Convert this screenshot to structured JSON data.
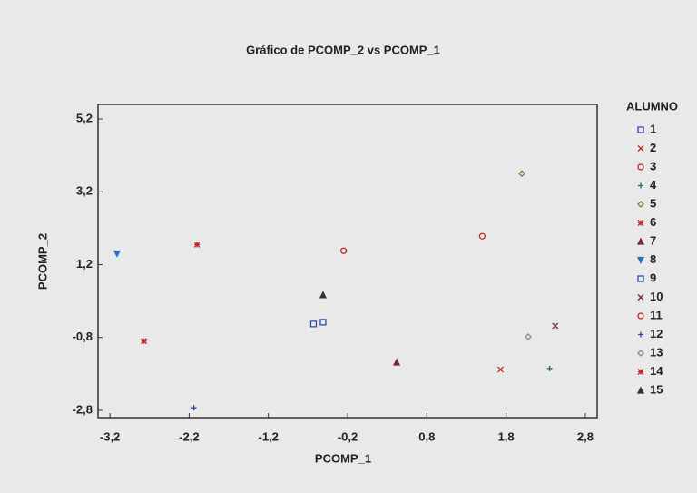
{
  "chart_data": {
    "type": "scatter",
    "title": "Gráfico de PCOMP_2 vs PCOMP_1",
    "x_label": "PCOMP_1",
    "y_label": "PCOMP_2",
    "legend_title": "ALUMNO",
    "xlim": [
      -3.35,
      2.95
    ],
    "ylim": [
      -3.0,
      5.6
    ],
    "xticks": [
      {
        "value": -3.2,
        "label": "-3,2"
      },
      {
        "value": -2.2,
        "label": "-2,2"
      },
      {
        "value": -1.2,
        "label": "-1,2"
      },
      {
        "value": -0.2,
        "label": "-0,2"
      },
      {
        "value": 0.8,
        "label": "0,8"
      },
      {
        "value": 1.8,
        "label": "1,8"
      },
      {
        "value": 2.8,
        "label": "2,8"
      }
    ],
    "yticks": [
      {
        "value": 5.2,
        "label": "5,2"
      },
      {
        "value": 3.2,
        "label": "3,2"
      },
      {
        "value": 1.2,
        "label": "1,2"
      },
      {
        "value": -0.8,
        "label": "-0,8"
      },
      {
        "value": -2.8,
        "label": "-2,8"
      }
    ],
    "series": [
      {
        "name": "1",
        "color": "#2a4aa8",
        "marker": "square",
        "x": [
          -0.63
        ],
        "values": [
          -0.43
        ]
      },
      {
        "name": "2",
        "color": "#c0282d",
        "marker": "x",
        "x": [
          1.73
        ],
        "values": [
          -1.68
        ]
      },
      {
        "name": "3",
        "color": "#c0282d",
        "marker": "circle",
        "x": [
          1.5
        ],
        "values": [
          1.98
        ]
      },
      {
        "name": "4",
        "color": "#2d6a2d",
        "marker": "plus",
        "x": [
          2.35
        ],
        "values": [
          -1.65
        ]
      },
      {
        "name": "5",
        "color": "#8a7a3a",
        "marker": "diamond",
        "x": [
          2.0
        ],
        "values": [
          3.7
        ]
      },
      {
        "name": "6",
        "color": "#c0282d",
        "marker": "asterisk",
        "x": [
          -2.1
        ],
        "values": [
          1.75
        ]
      },
      {
        "name": "7",
        "color": "#7a2040",
        "marker": "triangle",
        "x": [
          0.42
        ],
        "values": [
          -1.48
        ]
      },
      {
        "name": "8",
        "color": "#2a70c0",
        "marker": "triangle-down",
        "x": [
          -3.11
        ],
        "values": [
          1.5
        ]
      },
      {
        "name": "9",
        "color": "#2a4aa8",
        "marker": "square",
        "x": [
          -0.51
        ],
        "values": [
          -0.38
        ]
      },
      {
        "name": "10",
        "color": "#7a2040",
        "marker": "x",
        "x": [
          2.42
        ],
        "values": [
          -0.48
        ]
      },
      {
        "name": "11",
        "color": "#c0282d",
        "marker": "circle",
        "x": [
          -0.25
        ],
        "values": [
          1.58
        ]
      },
      {
        "name": "12",
        "color": "#2a4aa8",
        "marker": "plus",
        "x": [
          -2.14
        ],
        "values": [
          -2.73
        ]
      },
      {
        "name": "13",
        "color": "#888888",
        "marker": "diamond",
        "x": [
          2.08
        ],
        "values": [
          -0.78
        ]
      },
      {
        "name": "14",
        "color": "#c0282d",
        "marker": "asterisk",
        "x": [
          -2.77
        ],
        "values": [
          -0.9
        ]
      },
      {
        "name": "15",
        "color": "#333333",
        "marker": "triangle",
        "x": [
          -0.51
        ],
        "values": [
          0.37
        ]
      }
    ]
  }
}
